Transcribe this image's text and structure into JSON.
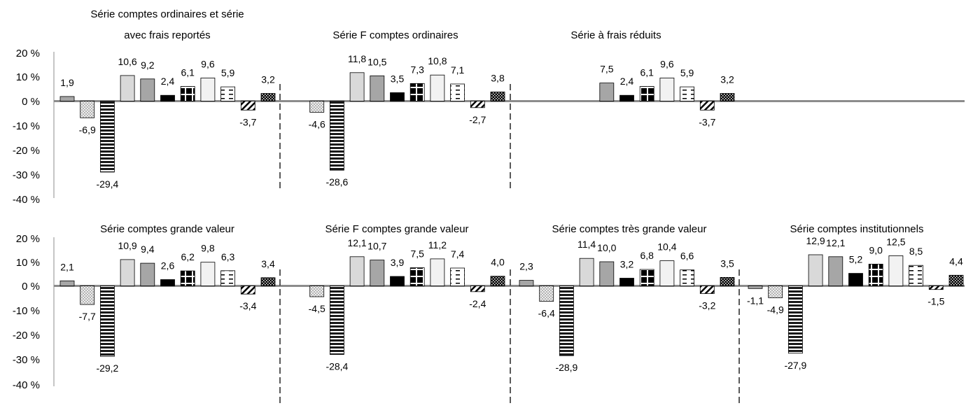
{
  "colors": {
    "bar_outline": "#000000",
    "zero_line": "#8c8c8c",
    "axis": "#8c8c8c",
    "light_gray": "#d9d9d9",
    "mid_gray": "#a6a6a6",
    "very_light": "#f2f2f2",
    "black": "#000000",
    "white": "#ffffff"
  },
  "chart_data": {
    "type": "bar",
    "note": "Sept séries de rendements, chacune avec jusqu'à 11 barres ; motifs de remplissage par position de barre",
    "bar_patterns": [
      "mid-gray",
      "light-dots",
      "horizontal-stripes",
      "light-gray",
      "mid-gray",
      "black",
      "black-white-cross",
      "very-light",
      "white-dashes",
      "white-diagonal",
      "black-checker"
    ],
    "ylim": [
      -40,
      20
    ],
    "yticks": [
      "20 %",
      "10 %",
      "0 %",
      "-10 %",
      "-20 %",
      "-30 %",
      "-40 %"
    ],
    "panels": [
      {
        "title_lines": [
          "Série comptes ordinaires et série",
          "avec frais reportés"
        ],
        "values": [
          1.9,
          -6.9,
          -29.4,
          10.6,
          9.2,
          2.4,
          6.1,
          9.6,
          5.9,
          -3.7,
          3.2
        ],
        "labels": [
          "1,9",
          "-6,9",
          "-29,4",
          "10,6",
          "9,2",
          "2,4",
          "6,1",
          "9,6",
          "5,9",
          "-3,7",
          "3,2"
        ]
      },
      {
        "title_lines": [
          "Série F comptes ordinaires"
        ],
        "values": [
          null,
          -4.6,
          -28.6,
          11.8,
          10.5,
          3.5,
          7.3,
          10.8,
          7.1,
          -2.7,
          3.8
        ],
        "labels": [
          "",
          "-4,6",
          "-28,6",
          "11,8",
          "10,5",
          "3,5",
          "7,3",
          "10,8",
          "7,1",
          "-2,7",
          "3,8"
        ]
      },
      {
        "title_lines": [
          "Série à frais réduits"
        ],
        "values": [
          null,
          null,
          null,
          null,
          7.5,
          2.4,
          6.1,
          9.6,
          5.9,
          -3.7,
          3.2
        ],
        "labels": [
          "",
          "",
          "",
          "",
          "7,5",
          "2,4",
          "6,1",
          "9,6",
          "5,9",
          "-3,7",
          "3,2"
        ]
      },
      {
        "title_lines": [
          "Série comptes grande valeur"
        ],
        "values": [
          2.1,
          -7.7,
          -29.2,
          10.9,
          9.4,
          2.6,
          6.2,
          9.8,
          6.3,
          -3.4,
          3.4
        ],
        "labels": [
          "2,1",
          "-7,7",
          "-29,2",
          "10,9",
          "9,4",
          "2,6",
          "6,2",
          "9,8",
          "6,3",
          "-3,4",
          "3,4"
        ]
      },
      {
        "title_lines": [
          "Série F comptes grande valeur"
        ],
        "values": [
          null,
          -4.5,
          -28.4,
          12.1,
          10.7,
          3.9,
          7.5,
          11.2,
          7.4,
          -2.4,
          4.0
        ],
        "labels": [
          "",
          "-4,5",
          "-28,4",
          "12,1",
          "10,7",
          "3,9",
          "7,5",
          "11,2",
          "7,4",
          "-2,4",
          "4,0"
        ]
      },
      {
        "title_lines": [
          "Série comptes très grande valeur"
        ],
        "values": [
          2.3,
          -6.4,
          -28.9,
          11.4,
          10.0,
          3.2,
          6.8,
          10.4,
          6.6,
          -3.2,
          3.5
        ],
        "labels": [
          "2,3",
          "-6,4",
          "-28,9",
          "11,4",
          "10,0",
          "3,2",
          "6,8",
          "10,4",
          "6,6",
          "-3,2",
          "3,5"
        ]
      },
      {
        "title_lines": [
          "Série comptes institutionnels"
        ],
        "values": [
          -1.1,
          -4.9,
          -27.9,
          12.9,
          12.1,
          5.2,
          9.0,
          12.5,
          8.5,
          -1.5,
          4.4
        ],
        "labels": [
          "-1,1",
          "-4,9",
          "-27,9",
          "12,9",
          "12,1",
          "5,2",
          "9,0",
          "12,5",
          "8,5",
          "-1,5",
          "4,4"
        ]
      }
    ]
  }
}
